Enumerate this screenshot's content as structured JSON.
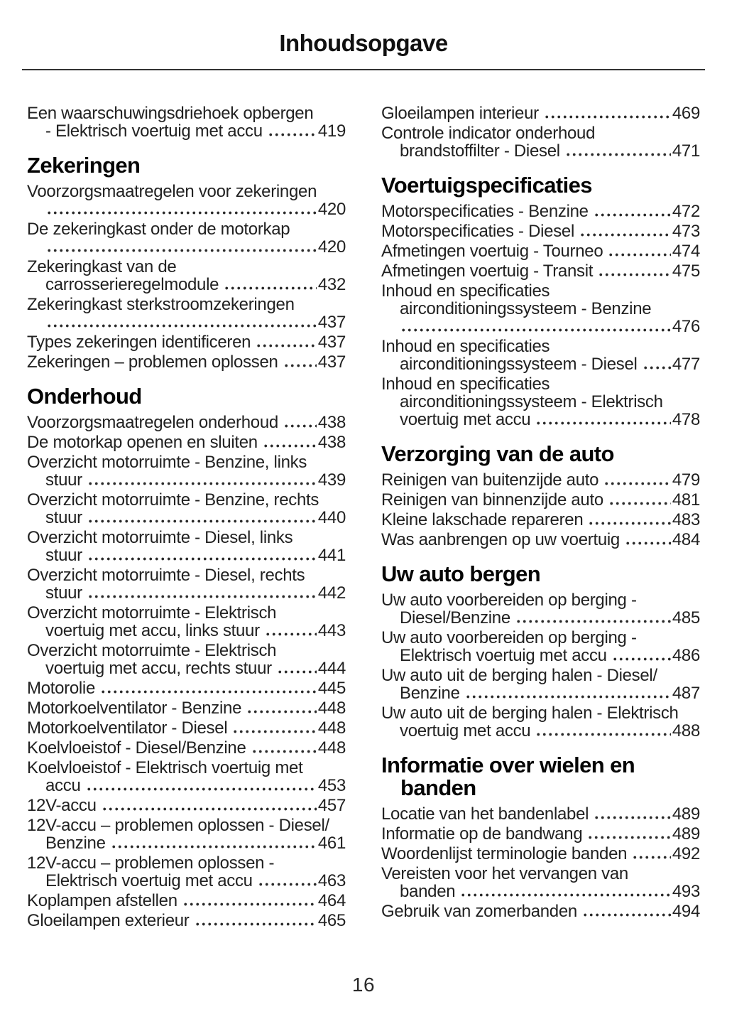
{
  "page": {
    "title": "Inhoudsopgave",
    "page_number": "16"
  },
  "columns": [
    {
      "blocks": [
        {
          "type": "entry",
          "lines": [
            {
              "t": "Een waarschuwingsdriehoek opbergen"
            },
            {
              "t": "- Elektrisch voertuig met accu",
              "i": 1,
              "d": 1,
              "p": "419"
            }
          ]
        },
        {
          "type": "header",
          "text": "Zekeringen"
        },
        {
          "type": "entry",
          "lines": [
            {
              "t": "Voorzorgsmaatregelen voor zekeringen"
            },
            {
              "t": "",
              "i": 1,
              "d": 1,
              "p": "420"
            }
          ]
        },
        {
          "type": "entry",
          "lines": [
            {
              "t": "De zekeringkast onder de motorkap"
            },
            {
              "t": "",
              "i": 1,
              "d": 1,
              "p": "420"
            }
          ]
        },
        {
          "type": "entry",
          "lines": [
            {
              "t": "Zekeringkast van de"
            },
            {
              "t": "carrosserieregelmodule",
              "i": 1,
              "d": 1,
              "p": "432"
            }
          ]
        },
        {
          "type": "entry",
          "lines": [
            {
              "t": "Zekeringkast sterkstroomzekeringen"
            },
            {
              "t": "",
              "i": 1,
              "d": 1,
              "p": "437"
            }
          ]
        },
        {
          "type": "entry",
          "lines": [
            {
              "t": "Types zekeringen identificeren",
              "d": 1,
              "p": "437"
            }
          ]
        },
        {
          "type": "entry",
          "lines": [
            {
              "t": "Zekeringen – problemen oplossen",
              "d": 1,
              "p": "437"
            }
          ]
        },
        {
          "type": "header",
          "text": "Onderhoud"
        },
        {
          "type": "entry",
          "lines": [
            {
              "t": "Voorzorgsmaatregelen onderhoud",
              "d": 1,
              "p": "438"
            }
          ]
        },
        {
          "type": "entry",
          "lines": [
            {
              "t": "De motorkap openen en sluiten",
              "d": 1,
              "p": "438"
            }
          ]
        },
        {
          "type": "entry",
          "lines": [
            {
              "t": "Overzicht motorruimte - Benzine, links"
            },
            {
              "t": "stuur",
              "i": 1,
              "d": 1,
              "p": "439"
            }
          ]
        },
        {
          "type": "entry",
          "lines": [
            {
              "t": "Overzicht motorruimte - Benzine, rechts"
            },
            {
              "t": "stuur",
              "i": 1,
              "d": 1,
              "p": "440"
            }
          ]
        },
        {
          "type": "entry",
          "lines": [
            {
              "t": "Overzicht motorruimte - Diesel, links"
            },
            {
              "t": "stuur",
              "i": 1,
              "d": 1,
              "p": "441"
            }
          ]
        },
        {
          "type": "entry",
          "lines": [
            {
              "t": "Overzicht motorruimte - Diesel, rechts"
            },
            {
              "t": "stuur",
              "i": 1,
              "d": 1,
              "p": "442"
            }
          ]
        },
        {
          "type": "entry",
          "lines": [
            {
              "t": "Overzicht motorruimte - Elektrisch"
            },
            {
              "t": "voertuig met accu, links stuur",
              "i": 1,
              "d": 1,
              "p": "443"
            }
          ]
        },
        {
          "type": "entry",
          "lines": [
            {
              "t": "Overzicht motorruimte - Elektrisch"
            },
            {
              "t": "voertuig met accu, rechts stuur",
              "i": 1,
              "d": 1,
              "p": "444"
            }
          ]
        },
        {
          "type": "entry",
          "lines": [
            {
              "t": "Motorolie",
              "d": 1,
              "p": "445"
            }
          ]
        },
        {
          "type": "entry",
          "lines": [
            {
              "t": "Motorkoelventilator - Benzine",
              "d": 1,
              "p": "448"
            }
          ]
        },
        {
          "type": "entry",
          "lines": [
            {
              "t": "Motorkoelventilator - Diesel",
              "d": 1,
              "p": "448"
            }
          ]
        },
        {
          "type": "entry",
          "lines": [
            {
              "t": "Koelvloeistof - Diesel/Benzine",
              "d": 1,
              "p": "448"
            }
          ]
        },
        {
          "type": "entry",
          "lines": [
            {
              "t": "Koelvloeistof - Elektrisch voertuig met"
            },
            {
              "t": "accu",
              "i": 1,
              "d": 1,
              "p": "453"
            }
          ]
        },
        {
          "type": "entry",
          "lines": [
            {
              "t": "12V-accu",
              "d": 1,
              "p": "457"
            }
          ]
        },
        {
          "type": "entry",
          "lines": [
            {
              "t": "12V-accu – problemen oplossen - Diesel/"
            },
            {
              "t": "Benzine",
              "i": 1,
              "d": 1,
              "p": "461"
            }
          ]
        },
        {
          "type": "entry",
          "lines": [
            {
              "t": "12V-accu – problemen oplossen -"
            },
            {
              "t": "Elektrisch voertuig met accu",
              "i": 1,
              "d": 1,
              "p": "463"
            }
          ]
        },
        {
          "type": "entry",
          "lines": [
            {
              "t": "Koplampen afstellen",
              "d": 1,
              "p": "464"
            }
          ]
        },
        {
          "type": "entry",
          "lines": [
            {
              "t": "Gloeilampen exterieur",
              "d": 1,
              "p": "465"
            }
          ]
        }
      ]
    },
    {
      "blocks": [
        {
          "type": "entry",
          "lines": [
            {
              "t": "Gloeilampen interieur",
              "d": 1,
              "p": "469"
            }
          ]
        },
        {
          "type": "entry",
          "lines": [
            {
              "t": "Controle indicator onderhoud"
            },
            {
              "t": "brandstoffilter - Diesel",
              "i": 1,
              "d": 1,
              "p": "471"
            }
          ]
        },
        {
          "type": "header",
          "text": "Voertuigspecificaties"
        },
        {
          "type": "entry",
          "lines": [
            {
              "t": "Motorspecificaties - Benzine",
              "d": 1,
              "p": "472"
            }
          ]
        },
        {
          "type": "entry",
          "lines": [
            {
              "t": "Motorspecificaties - Diesel",
              "d": 1,
              "p": "473"
            }
          ]
        },
        {
          "type": "entry",
          "lines": [
            {
              "t": "Afmetingen voertuig - Tourneo",
              "d": 1,
              "p": "474"
            }
          ]
        },
        {
          "type": "entry",
          "lines": [
            {
              "t": "Afmetingen voertuig - Transit",
              "d": 1,
              "p": "475"
            }
          ]
        },
        {
          "type": "entry",
          "lines": [
            {
              "t": "Inhoud en specificaties"
            },
            {
              "t": "airconditioningssysteem - Benzine",
              "i": 1
            },
            {
              "t": "",
              "i": 1,
              "d": 1,
              "p": "476"
            }
          ]
        },
        {
          "type": "entry",
          "lines": [
            {
              "t": "Inhoud en specificaties"
            },
            {
              "t": "airconditioningssysteem - Diesel",
              "i": 1,
              "d": 1,
              "p": "477"
            }
          ]
        },
        {
          "type": "entry",
          "lines": [
            {
              "t": "Inhoud en specificaties"
            },
            {
              "t": "airconditioningssysteem - Elektrisch",
              "i": 1
            },
            {
              "t": "voertuig met accu",
              "i": 1,
              "d": 1,
              "p": "478"
            }
          ]
        },
        {
          "type": "header",
          "text": "Verzorging van de auto"
        },
        {
          "type": "entry",
          "lines": [
            {
              "t": "Reinigen van buitenzijde auto",
              "d": 1,
              "p": "479"
            }
          ]
        },
        {
          "type": "entry",
          "lines": [
            {
              "t": "Reinigen van binnenzijde auto",
              "d": 1,
              "p": "481"
            }
          ]
        },
        {
          "type": "entry",
          "lines": [
            {
              "t": "Kleine lakschade repareren",
              "d": 1,
              "p": "483"
            }
          ]
        },
        {
          "type": "entry",
          "lines": [
            {
              "t": "Was aanbrengen op uw voertuig",
              "d": 1,
              "p": "484"
            }
          ]
        },
        {
          "type": "header",
          "text": "Uw auto bergen"
        },
        {
          "type": "entry",
          "lines": [
            {
              "t": "Uw auto voorbereiden op berging -"
            },
            {
              "t": "Diesel/Benzine",
              "i": 1,
              "d": 1,
              "p": "485"
            }
          ]
        },
        {
          "type": "entry",
          "lines": [
            {
              "t": "Uw auto voorbereiden op berging -"
            },
            {
              "t": "Elektrisch voertuig met accu",
              "i": 1,
              "d": 1,
              "p": "486"
            }
          ]
        },
        {
          "type": "entry",
          "lines": [
            {
              "t": "Uw auto uit de berging halen - Diesel/"
            },
            {
              "t": "Benzine",
              "i": 1,
              "d": 1,
              "p": "487"
            }
          ]
        },
        {
          "type": "entry",
          "lines": [
            {
              "t": "Uw auto uit de berging halen - Elektrisch"
            },
            {
              "t": "voertuig met accu",
              "i": 1,
              "d": 1,
              "p": "488"
            }
          ]
        },
        {
          "type": "header",
          "text": "Informatie over wielen en",
          "text2": "banden"
        },
        {
          "type": "entry",
          "lines": [
            {
              "t": "Locatie van het bandenlabel",
              "d": 1,
              "p": "489"
            }
          ]
        },
        {
          "type": "entry",
          "lines": [
            {
              "t": "Informatie op de bandwang",
              "d": 1,
              "p": "489"
            }
          ]
        },
        {
          "type": "entry",
          "lines": [
            {
              "t": "Woordenlijst terminologie banden",
              "d": 1,
              "p": "492"
            }
          ]
        },
        {
          "type": "entry",
          "lines": [
            {
              "t": "Vereisten voor het vervangen van"
            },
            {
              "t": "banden",
              "i": 1,
              "d": 1,
              "p": "493"
            }
          ]
        },
        {
          "type": "entry",
          "lines": [
            {
              "t": "Gebruik van zomerbanden",
              "d": 1,
              "p": "494"
            }
          ]
        }
      ]
    }
  ]
}
